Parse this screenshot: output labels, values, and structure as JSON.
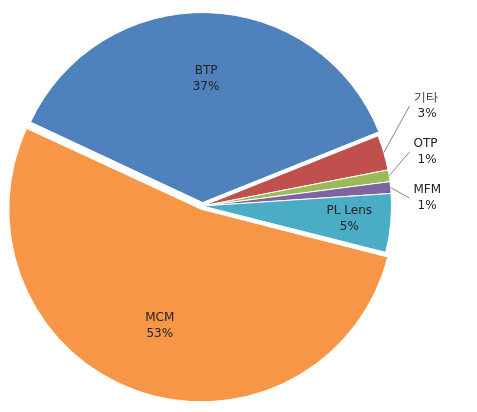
{
  "chart_data": {
    "type": "pie",
    "categories": [
      "BTP",
      "기타",
      "OTP",
      "MFM",
      "PL Lens",
      "MCM"
    ],
    "values": [
      37,
      3,
      1,
      1,
      5,
      53
    ],
    "value_labels": [
      "37%",
      "3%",
      "1%",
      "1%",
      "5%",
      "53%"
    ],
    "colors": [
      "#4f81bd",
      "#c0504d",
      "#9bbb59",
      "#8064a2",
      "#4bacc6",
      "#f79646"
    ],
    "data_labels": true
  }
}
